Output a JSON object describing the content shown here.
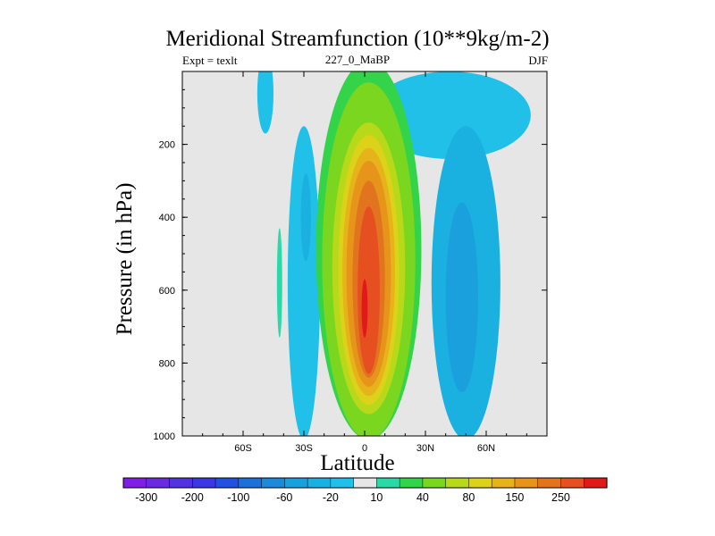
{
  "chart_data": {
    "type": "heatmap",
    "title": "Meridional Streamfunction (10**9kg/m-2)",
    "subtitle_left": "Expt = texlt",
    "subtitle_center": "227_0_MaBP",
    "subtitle_right": "DJF",
    "xlabel": "Latitude",
    "ylabel": "Pressure (in hPa)",
    "xlim": [
      -90,
      90
    ],
    "ylim": [
      1000,
      0
    ],
    "x_ticks": [
      {
        "value": -60,
        "label": "60S"
      },
      {
        "value": -30,
        "label": "30S"
      },
      {
        "value": 0,
        "label": "0"
      },
      {
        "value": 30,
        "label": "30N"
      },
      {
        "value": 60,
        "label": "60N"
      }
    ],
    "y_ticks": [
      {
        "value": 200,
        "label": "200"
      },
      {
        "value": 400,
        "label": "400"
      },
      {
        "value": 600,
        "label": "600"
      },
      {
        "value": 800,
        "label": "800"
      },
      {
        "value": 1000,
        "label": "1000"
      }
    ],
    "colorbar": {
      "levels": [
        -400,
        -300,
        -250,
        -200,
        -150,
        -100,
        -80,
        -60,
        -40,
        -20,
        -10,
        10,
        20,
        40,
        60,
        80,
        100,
        150,
        200,
        250,
        300
      ],
      "colors": [
        "#7f1fe6",
        "#6a2be0",
        "#5233e0",
        "#3b37e3",
        "#2450e0",
        "#1f6fd8",
        "#1d8ad9",
        "#1aa0dc",
        "#1ab0e0",
        "#20c0e8",
        "#e6e6e6",
        "#2bd9a8",
        "#33d44a",
        "#7ad61f",
        "#b8d81a",
        "#ddd21a",
        "#e6b41a",
        "#e6951a",
        "#e3741f",
        "#e65020",
        "#e01a1a"
      ],
      "labels": [
        {
          "level": -300,
          "text": "-300"
        },
        {
          "level": -200,
          "text": "-200"
        },
        {
          "level": -100,
          "text": "-100"
        },
        {
          "level": -60,
          "text": "-60"
        },
        {
          "level": -20,
          "text": "-20"
        },
        {
          "level": 10,
          "text": "10"
        },
        {
          "level": 40,
          "text": "40"
        },
        {
          "level": 80,
          "text": "80"
        },
        {
          "level": 150,
          "text": "150"
        },
        {
          "level": 250,
          "text": "250"
        }
      ]
    },
    "cells": [
      {
        "name": "north-polar-upper-cell",
        "center_lat": 42,
        "center_p": 120,
        "half_width_lat": 40,
        "half_depth_p": 120,
        "value": -20
      },
      {
        "name": "north-ferrel-cell",
        "center_lat": 50,
        "center_p": 580,
        "half_width_lat": 17,
        "half_depth_p": 430,
        "value": -40
      },
      {
        "name": "north-ferrel-core",
        "center_lat": 48,
        "center_p": 620,
        "half_width_lat": 8,
        "half_depth_p": 260,
        "value": -60
      },
      {
        "name": "south-ferrel-cell",
        "center_lat": -30,
        "center_p": 580,
        "half_width_lat": 8,
        "half_depth_p": 430,
        "value": -20
      },
      {
        "name": "south-ferrel-core",
        "center_lat": -29,
        "center_p": 400,
        "half_width_lat": 2.5,
        "half_depth_p": 120,
        "value": -40
      },
      {
        "name": "south-polar-upper-cell",
        "center_lat": -49,
        "center_p": 60,
        "half_width_lat": 4,
        "half_depth_p": 110,
        "value": -20
      },
      {
        "name": "south-small-positive",
        "center_lat": -42,
        "center_p": 580,
        "half_width_lat": 1.3,
        "half_depth_p": 150,
        "value": 10
      },
      {
        "name": "hadley-cell-level-10",
        "center_lat": 2,
        "center_p": 490,
        "half_width_lat": 26,
        "half_depth_p": 520,
        "value": 20
      },
      {
        "name": "hadley-cell-level-20",
        "center_lat": 2,
        "center_p": 520,
        "half_width_lat": 23,
        "half_depth_p": 490,
        "value": 40
      },
      {
        "name": "hadley-cell-level-40",
        "center_lat": 2,
        "center_p": 540,
        "half_width_lat": 18,
        "half_depth_p": 400,
        "value": 60
      },
      {
        "name": "hadley-cell-level-60",
        "center_lat": 2,
        "center_p": 545,
        "half_width_lat": 15,
        "half_depth_p": 370,
        "value": 80
      },
      {
        "name": "hadley-cell-level-80",
        "center_lat": 2,
        "center_p": 550,
        "half_width_lat": 13,
        "half_depth_p": 340,
        "value": 100
      },
      {
        "name": "hadley-cell-level-100",
        "center_lat": 2,
        "center_p": 555,
        "half_width_lat": 11,
        "half_depth_p": 310,
        "value": 150
      },
      {
        "name": "hadley-cell-level-150",
        "center_lat": 2,
        "center_p": 570,
        "half_width_lat": 8,
        "half_depth_p": 270,
        "value": 200
      },
      {
        "name": "hadley-cell-level-200",
        "center_lat": 2,
        "center_p": 600,
        "half_width_lat": 5.5,
        "half_depth_p": 230,
        "value": 250
      },
      {
        "name": "hadley-cell-core",
        "center_lat": 0,
        "center_p": 650,
        "half_width_lat": 1.5,
        "half_depth_p": 80,
        "value": 300
      }
    ]
  }
}
